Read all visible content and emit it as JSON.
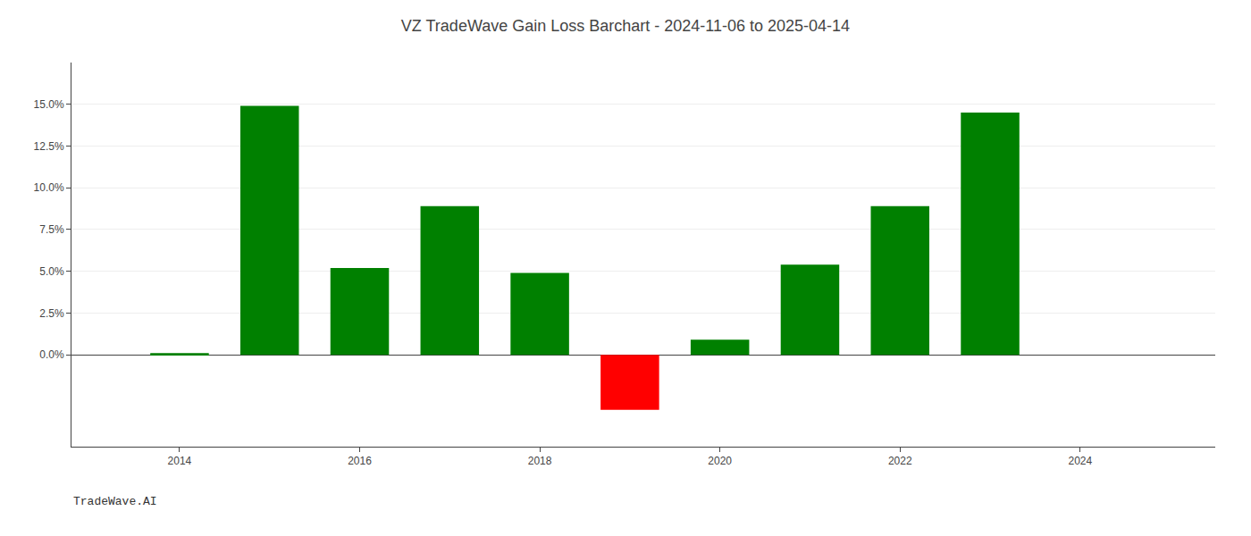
{
  "chart_data": {
    "type": "bar",
    "title": "VZ TradeWave Gain Loss Barchart - 2024-11-06 to 2025-04-14",
    "annotations": [
      "TradeWave.AI"
    ],
    "x": [
      2014,
      2015,
      2016,
      2017,
      2018,
      2019,
      2020,
      2021,
      2022,
      2023
    ],
    "values": [
      0.001,
      0.149,
      0.052,
      0.089,
      0.049,
      -0.033,
      0.009,
      0.054,
      0.089,
      0.145
    ],
    "colors": [
      "#008000",
      "#008000",
      "#008000",
      "#008000",
      "#008000",
      "#ff0000",
      "#008000",
      "#008000",
      "#008000",
      "#008000"
    ],
    "xlim": [
      2012.8,
      2025.5
    ],
    "xticks": [
      2014,
      2016,
      2018,
      2020,
      2022,
      2024
    ],
    "ylim": [
      -0.055,
      0.175
    ],
    "yticks": [
      {
        "value": 0.0,
        "label": "0.0%"
      },
      {
        "value": 0.025,
        "label": "2.5%"
      },
      {
        "value": 0.05,
        "label": "5.0%"
      },
      {
        "value": 0.075,
        "label": "7.5%"
      },
      {
        "value": 0.1,
        "label": "10.0%"
      },
      {
        "value": 0.125,
        "label": "12.5%"
      },
      {
        "value": 0.15,
        "label": "15.0%"
      }
    ],
    "grid": true
  }
}
